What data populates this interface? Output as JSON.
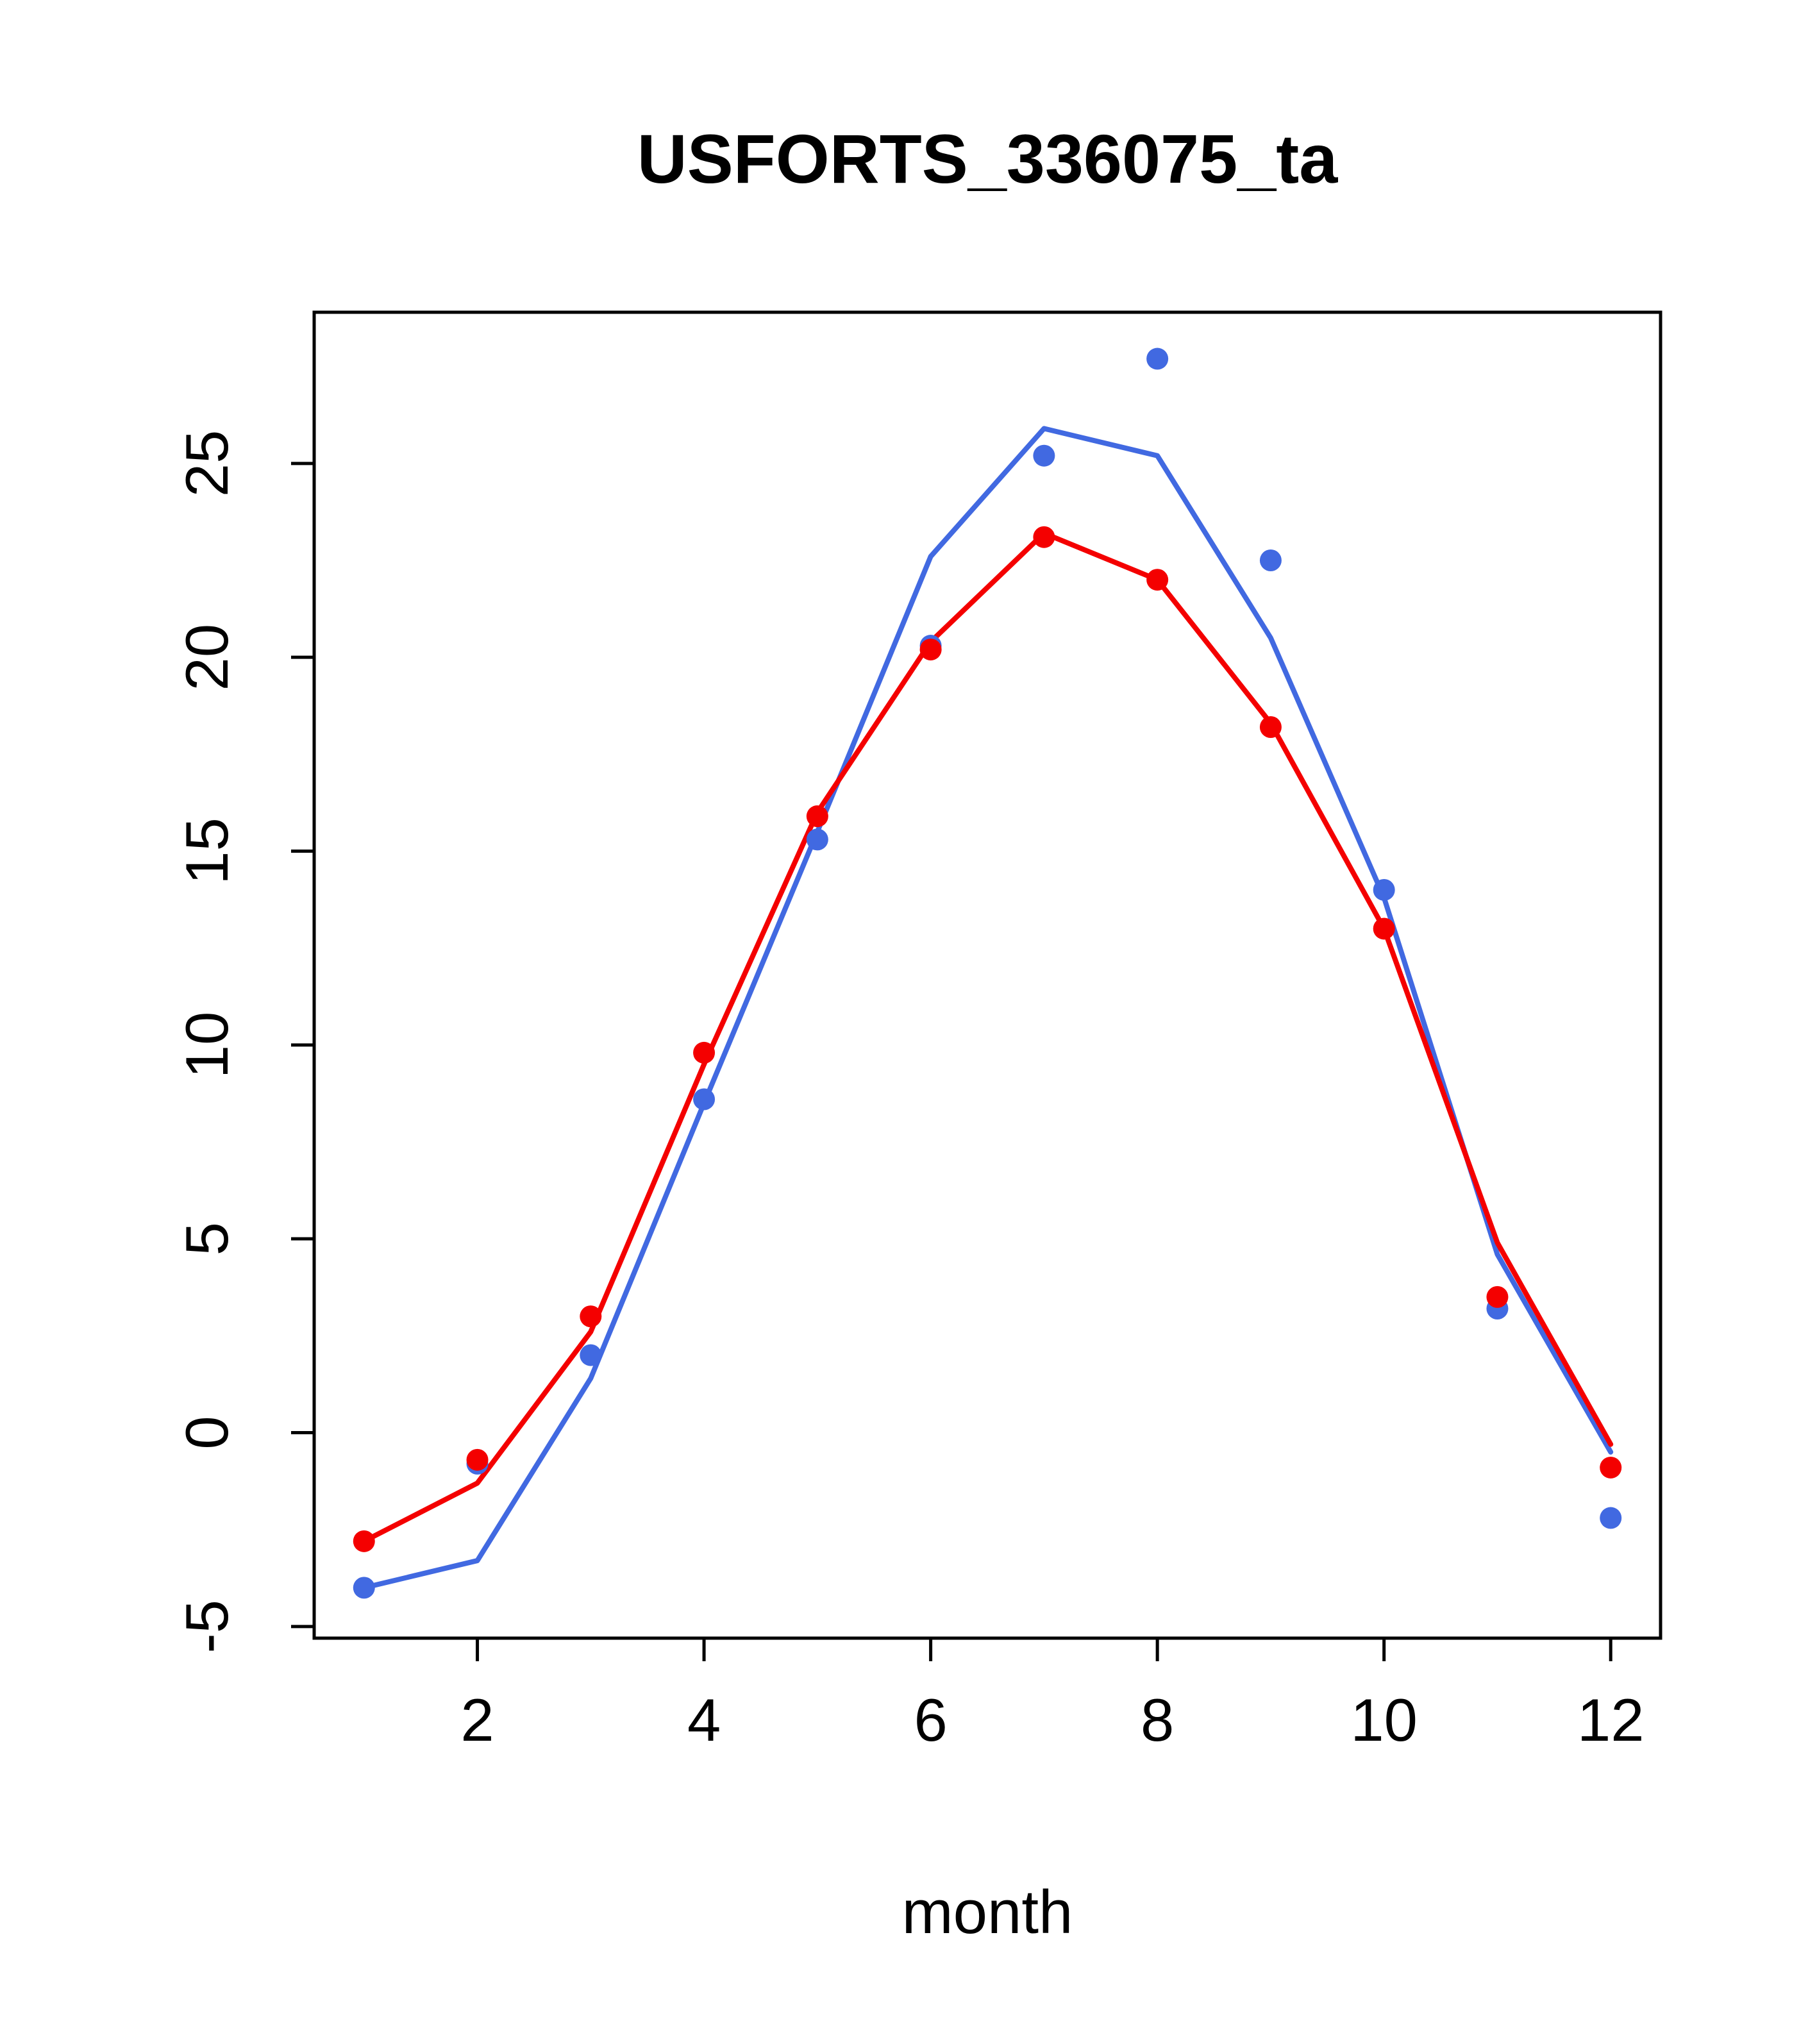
{
  "chart_data": {
    "type": "line",
    "title": "USFORTS_336075_ta",
    "xlabel": "month",
    "ylabel": "",
    "xlim": [
      0.56,
      12.44
    ],
    "ylim": [
      -5.3,
      28.9
    ],
    "xticks": [
      2,
      4,
      6,
      8,
      10,
      12
    ],
    "yticks": [
      -5,
      0,
      5,
      10,
      15,
      20,
      25
    ],
    "grid": false,
    "legend": "none",
    "x": [
      1,
      2,
      3,
      4,
      5,
      6,
      7,
      8,
      9,
      10,
      11,
      12
    ],
    "series": [
      {
        "name": "blue-line",
        "style": "line",
        "color": "#4169e1",
        "values": [
          -4.0,
          -3.3,
          1.4,
          8.5,
          15.5,
          22.6,
          25.9,
          25.2,
          20.5,
          13.8,
          4.6,
          -0.5
        ]
      },
      {
        "name": "red-line",
        "style": "line",
        "color": "#f40000",
        "values": [
          -2.8,
          -1.3,
          2.6,
          9.5,
          16.0,
          20.4,
          23.2,
          22.0,
          18.3,
          13.0,
          4.9,
          -0.3
        ]
      },
      {
        "name": "blue-points",
        "style": "points",
        "color": "#4169e1",
        "values": [
          -4.0,
          -0.8,
          2.0,
          8.6,
          15.3,
          20.3,
          25.2,
          27.7,
          22.5,
          14.0,
          3.2,
          -2.2
        ]
      },
      {
        "name": "red-points",
        "style": "points",
        "color": "#f40000",
        "values": [
          -2.8,
          -0.7,
          3.0,
          9.8,
          15.9,
          20.2,
          23.1,
          22.0,
          18.2,
          13.0,
          3.5,
          -0.9
        ]
      }
    ]
  }
}
